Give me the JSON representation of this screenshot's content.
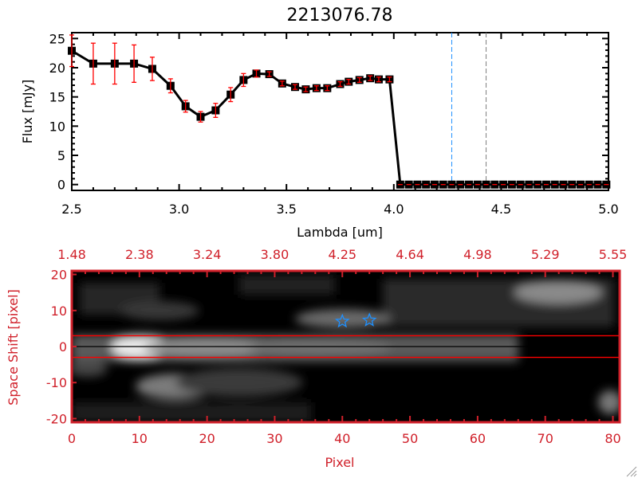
{
  "chart_data": [
    {
      "type": "line",
      "title": "2213076.78",
      "xlabel": "Lambda [um]",
      "ylabel": "Flux [mJy]",
      "xlim": [
        2.5,
        5.0
      ],
      "ylim": [
        -1,
        26
      ],
      "xticks": [
        "2.5",
        "3.0",
        "3.5",
        "4.0",
        "4.5",
        "5.0"
      ],
      "xtick_values": [
        2.5,
        3.0,
        3.5,
        4.0,
        4.5,
        5.0
      ],
      "yticks": [
        "0",
        "5",
        "10",
        "15",
        "20",
        "25"
      ],
      "ytick_values": [
        0,
        5,
        10,
        15,
        20,
        25
      ],
      "x": [
        2.5,
        2.6,
        2.7,
        2.79,
        2.875,
        2.96,
        3.03,
        3.1,
        3.17,
        3.24,
        3.3,
        3.36,
        3.42,
        3.48,
        3.54,
        3.59,
        3.64,
        3.69,
        3.75,
        3.79,
        3.84,
        3.89,
        3.93,
        3.98,
        4.03,
        4.07,
        4.11,
        4.15,
        4.19,
        4.23,
        4.27,
        4.31,
        4.35,
        4.39,
        4.43,
        4.47,
        4.51,
        4.55,
        4.59,
        4.63,
        4.67,
        4.71,
        4.75,
        4.79,
        4.83,
        4.87,
        4.91,
        4.95,
        4.99
      ],
      "y": [
        22.9,
        20.7,
        20.7,
        20.7,
        19.8,
        16.9,
        13.4,
        11.6,
        12.7,
        15.4,
        17.9,
        19.0,
        18.9,
        17.3,
        16.7,
        16.3,
        16.5,
        16.5,
        17.2,
        17.6,
        17.9,
        18.2,
        18.0,
        18.0,
        0,
        0,
        0,
        0,
        0,
        0,
        0,
        0,
        0,
        0,
        0,
        0,
        0,
        0,
        0,
        0,
        0,
        0,
        0,
        0,
        0,
        0,
        0,
        0,
        0
      ],
      "yerr": [
        2.7,
        3.5,
        3.5,
        3.2,
        2.0,
        1.2,
        1.0,
        0.9,
        1.2,
        1.2,
        1.1,
        0.6,
        0.4,
        0.4,
        0.4,
        0.4,
        0.4,
        0.4,
        0.4,
        0.4,
        0.4,
        0.4,
        0.4,
        0.4,
        0,
        0,
        0,
        0,
        0,
        0,
        0,
        0,
        0,
        0,
        0,
        0,
        0,
        0,
        0,
        0,
        0,
        0,
        0,
        0,
        0,
        0,
        0,
        0,
        0
      ],
      "vlines": [
        {
          "x": 4.27,
          "color": "#1e90ff"
        },
        {
          "x": 4.43,
          "color": "#808080"
        }
      ],
      "line_color": "#000000",
      "errorbar_color": "#ff0000"
    },
    {
      "type": "heatmap",
      "xlabel": "Pixel",
      "ylabel": "Space Shift [pixel]",
      "xlim": [
        0,
        81
      ],
      "ylim": [
        -21,
        21
      ],
      "xticks": [
        "0",
        "10",
        "20",
        "30",
        "40",
        "50",
        "60",
        "70",
        "80"
      ],
      "xtick_values": [
        0,
        10,
        20,
        30,
        40,
        50,
        60,
        70,
        80
      ],
      "top_xticks": [
        "1.48",
        "2.38",
        "3.24",
        "3.80",
        "4.25",
        "4.64",
        "4.98",
        "5.29",
        "5.55"
      ],
      "yticks": [
        "-20",
        "-10",
        "0",
        "10",
        "20"
      ],
      "ytick_values": [
        -20,
        -10,
        0,
        10,
        20
      ],
      "hlines": [
        {
          "y": 3,
          "color": "#ff0000"
        },
        {
          "y": 0,
          "color": "#000000"
        },
        {
          "y": -3,
          "color": "#ff0000"
        }
      ],
      "markers": [
        {
          "x": 40,
          "y": 7,
          "symbol": "star",
          "color": "#1e90ff"
        },
        {
          "x": 44,
          "y": 7.3,
          "symbol": "star",
          "color": "#1e90ff"
        }
      ],
      "axis_color": "#d0202a"
    }
  ]
}
